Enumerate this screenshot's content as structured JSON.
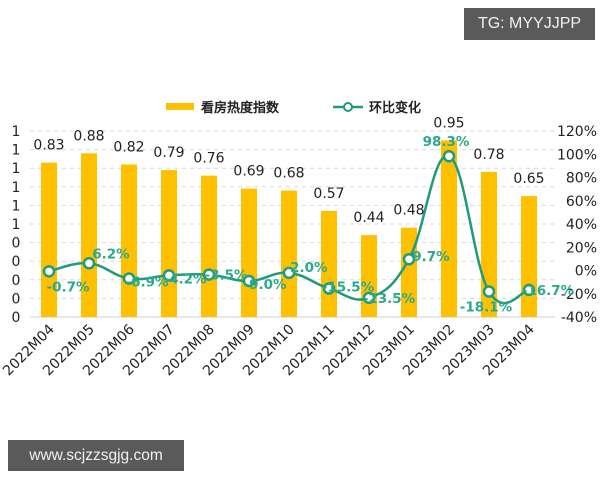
{
  "watermarks": {
    "top_right": "TG: MYYJJPP",
    "bottom_left": "www.scjzzsgjg.com"
  },
  "legend": {
    "bar_label": "看房热度指数",
    "line_label": "环比变化"
  },
  "colors": {
    "bar": "#FFC000",
    "line": "#1F9A7D",
    "line_label": "#2BA98C",
    "grid": "#d9d9d9",
    "axis_text": "#222222"
  },
  "chart_data": {
    "type": "bar",
    "title": "",
    "xlabel": "",
    "ylabel": "",
    "categories": [
      "2022M04",
      "2022M05",
      "2022M06",
      "2022M07",
      "2022M08",
      "2022M09",
      "2022M10",
      "2022M11",
      "2022M12",
      "2023M01",
      "2023M02",
      "2023M03",
      "2023M04"
    ],
    "series": [
      {
        "name": "看房热度指数",
        "type": "bar",
        "axis": "left",
        "values": [
          0.83,
          0.88,
          0.82,
          0.79,
          0.76,
          0.69,
          0.68,
          0.57,
          0.44,
          0.48,
          0.95,
          0.78,
          0.65
        ],
        "labels": [
          "0.83",
          "0.88",
          "0.82",
          "0.79",
          "0.76",
          "0.69",
          "0.68",
          "0.57",
          "0.44",
          "0.48",
          "0.95",
          "0.78",
          "0.65"
        ]
      },
      {
        "name": "环比变化",
        "type": "line",
        "axis": "right",
        "unit": "%",
        "values": [
          -0.7,
          6.2,
          -6.9,
          -4.2,
          -3.5,
          -9.0,
          -2.0,
          -15.5,
          -23.5,
          9.7,
          98.3,
          -18.1,
          -16.7
        ],
        "labels": [
          "-0.7%",
          "6.2%",
          "-6.9%",
          "-4.2%",
          "-3.5%",
          "-9.0%",
          "-2.0%",
          "-15.5%",
          "-23.5%",
          "9.7%",
          "98.3%",
          "-18.1%",
          "-16.7%"
        ]
      }
    ],
    "left_axis": {
      "ylim": [
        0,
        1.0
      ],
      "tick_labels": [
        "1",
        "1",
        "1",
        "1",
        "1",
        "1",
        "0",
        "0",
        "0",
        "0",
        "0"
      ]
    },
    "right_axis": {
      "ylim": [
        -40,
        120
      ],
      "tick_labels": [
        "120%",
        "100%",
        "80%",
        "60%",
        "40%",
        "20%",
        "0%",
        "-20%",
        "-40%"
      ]
    },
    "grid": true,
    "grid_style": "dashed horizontal",
    "legend_position": "top"
  }
}
